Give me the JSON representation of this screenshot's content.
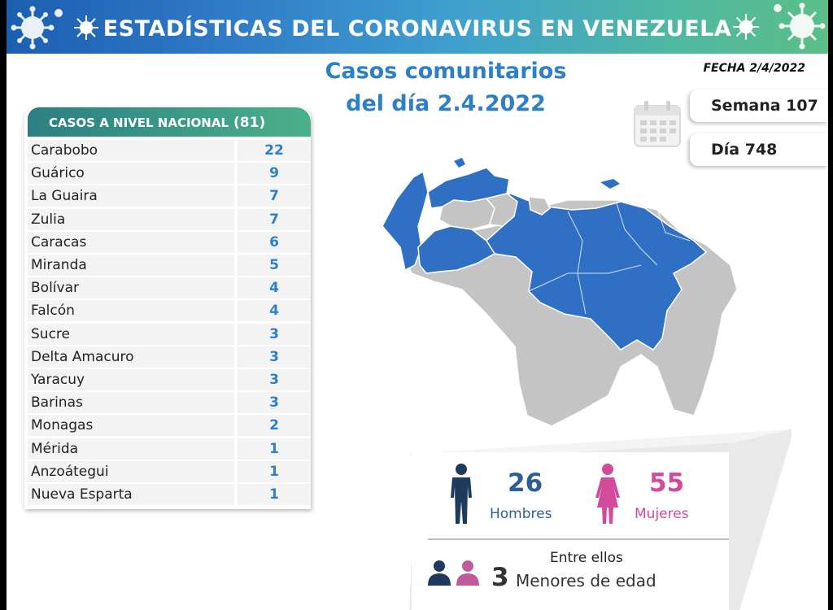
{
  "header": {
    "title": "ESTADÍSTICAS DEL CORONAVIRUS EN VENEZUELA"
  },
  "fecha": "FECHA 2/4/2022",
  "main_title": {
    "line1": "Casos comunitarios",
    "line2": "del día 2.4.2022"
  },
  "semana": "Semana 107",
  "dia": "Día 748",
  "national": {
    "label": "CASOS A NIVEL NACIONAL",
    "total": "(81)",
    "rows": [
      {
        "state": "Carabobo",
        "cases": "22"
      },
      {
        "state": "Guárico",
        "cases": "9"
      },
      {
        "state": "La Guaira",
        "cases": "7"
      },
      {
        "state": "Zulia",
        "cases": "7"
      },
      {
        "state": "Caracas",
        "cases": "6"
      },
      {
        "state": "Miranda",
        "cases": "5"
      },
      {
        "state": "Bolívar",
        "cases": "4"
      },
      {
        "state": "Falcón",
        "cases": "4"
      },
      {
        "state": "Sucre",
        "cases": "3"
      },
      {
        "state": "Delta Amacuro",
        "cases": "3"
      },
      {
        "state": "Yaracuy",
        "cases": "3"
      },
      {
        "state": "Barinas",
        "cases": "3"
      },
      {
        "state": "Monagas",
        "cases": "2"
      },
      {
        "state": "Mérida",
        "cases": "1"
      },
      {
        "state": "Anzoátegui",
        "cases": "1"
      },
      {
        "state": "Nueva Esparta",
        "cases": "1"
      }
    ]
  },
  "stats": {
    "hombres_count": "26",
    "hombres_label": "Hombres",
    "mujeres_count": "55",
    "mujeres_label": "Mujeres",
    "menores_intro": "Entre ellos",
    "menores_count": "3",
    "menores_label": "Menores de edad"
  },
  "colors": {
    "header_start": "#1c5fb0",
    "header_end": "#5bbf86",
    "accent_blue": "#2d7fc7",
    "map_affected": "#2f6fc4",
    "map_unaffected": "#c4c4c4",
    "male": "#1e3a5c",
    "female": "#d24a9a",
    "table_header": "#2b7f82"
  },
  "icons": [
    "virus-icon",
    "calendar-icon",
    "male-icon",
    "female-icon",
    "child-male-icon",
    "child-female-icon"
  ]
}
